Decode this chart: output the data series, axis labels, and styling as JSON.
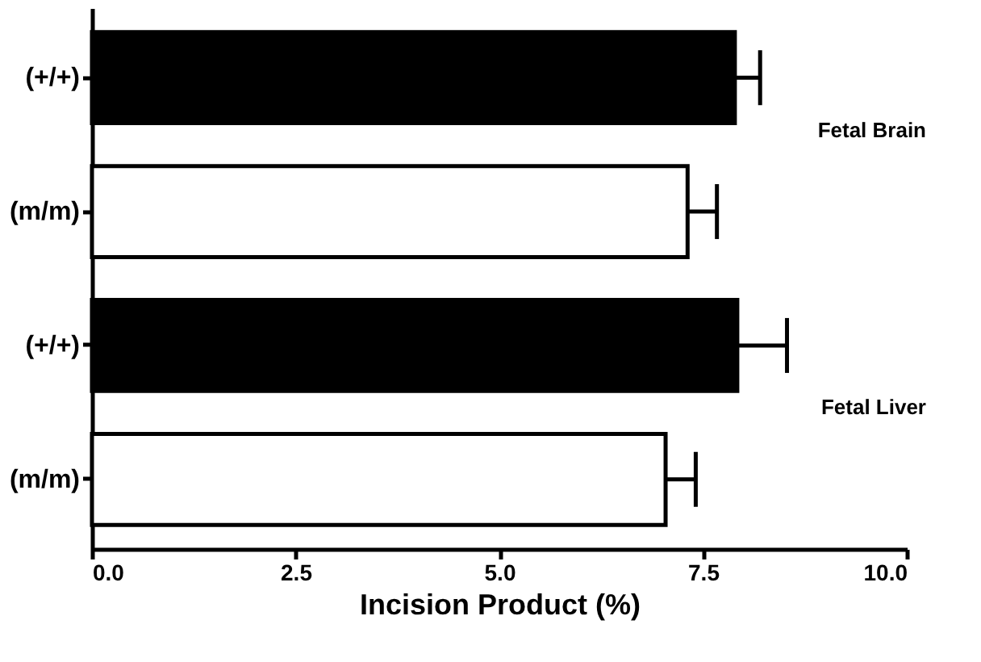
{
  "chart_data": {
    "type": "bar",
    "orientation": "horizontal",
    "categories": [
      "(+/+)",
      "(m/m)",
      "(+/+)",
      "(m/m)"
    ],
    "values": [
      7.89,
      7.31,
      7.92,
      7.04
    ],
    "colors": [
      "#000000",
      "#ffffff",
      "#000000",
      "#ffffff"
    ],
    "errors": [
      [
        7.89,
        8.2
      ],
      [
        7.31,
        7.67
      ],
      [
        7.92,
        8.53
      ],
      [
        7.04,
        7.41
      ]
    ],
    "xlabel": "Incision Product (%)",
    "xlim": [
      0,
      10
    ],
    "xticks": [
      {
        "value": 0,
        "label": "0.0"
      },
      {
        "value": 2.5,
        "label": "2.5"
      },
      {
        "value": 5,
        "label": "5.0"
      },
      {
        "value": 7.5,
        "label": "7.5"
      },
      {
        "value": 10,
        "label": "10.0"
      }
    ],
    "annotations": [
      "Fetal Brain",
      "Fetal Liver"
    ],
    "grid": false
  }
}
